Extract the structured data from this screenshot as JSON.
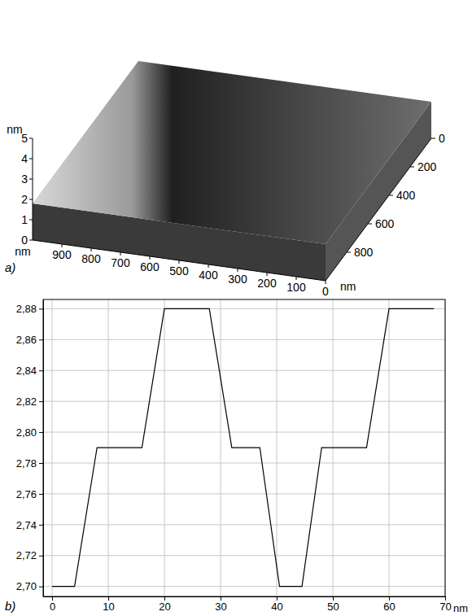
{
  "chart_data": [
    {
      "type": "surface",
      "title": "a)",
      "xlabel": "nm",
      "ylabel": "nm",
      "zlabel": "nm",
      "xlim": [
        0,
        1000
      ],
      "xticks": [
        0,
        100,
        200,
        300,
        400,
        500,
        600,
        700,
        800,
        900
      ],
      "ylim": [
        0,
        1000
      ],
      "yticks": [
        0,
        200,
        400,
        600,
        800
      ],
      "zlim": [
        0,
        5
      ],
      "zticks": [
        0,
        1,
        2,
        3,
        4,
        5
      ]
    },
    {
      "type": "line",
      "title": "b)",
      "xlabel": "nm",
      "color": "#000000",
      "grid": true,
      "x": [
        0,
        4,
        8,
        16,
        20,
        28,
        32,
        37,
        40.5,
        44.5,
        48,
        56,
        60,
        68
      ],
      "values": [
        2.7,
        2.7,
        2.79,
        2.79,
        2.88,
        2.88,
        2.79,
        2.79,
        2.7,
        2.7,
        2.79,
        2.79,
        2.88,
        2.88
      ],
      "xlim": [
        -1.6,
        70
      ],
      "xticks": [
        0,
        10,
        20,
        30,
        40,
        50,
        60,
        70
      ],
      "ylim": [
        2.6935,
        2.886
      ],
      "yticks": [
        {
          "value": 2.7,
          "label": "2,70"
        },
        {
          "value": 2.72,
          "label": "2,72"
        },
        {
          "value": 2.74,
          "label": "2,74"
        },
        {
          "value": 2.76,
          "label": "2,76"
        },
        {
          "value": 2.78,
          "label": "2,78"
        },
        {
          "value": 2.8,
          "label": "2,80"
        },
        {
          "value": 2.82,
          "label": "2,82"
        },
        {
          "value": 2.84,
          "label": "2,84"
        },
        {
          "value": 2.86,
          "label": "2,86"
        },
        {
          "value": 2.88,
          "label": "2,88"
        }
      ]
    }
  ]
}
